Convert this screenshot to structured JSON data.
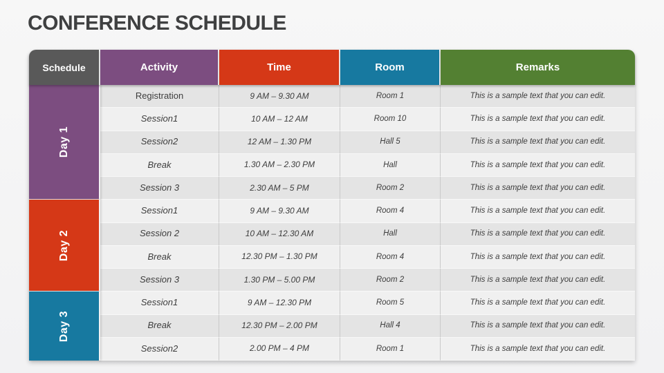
{
  "title": "CONFERENCE SCHEDULE",
  "table": {
    "headers": [
      "Schedule",
      "Activity",
      "Time",
      "Room",
      "Remarks"
    ],
    "days": [
      {
        "label": "Day 1",
        "rows": [
          {
            "activity": "Registration",
            "time": "9 AM – 9.30 AM",
            "room": "Room 1",
            "remark": "This is a sample text that you can edit."
          },
          {
            "activity": "Session1",
            "time": "10 AM – 12 AM",
            "room": "Room 10",
            "remark": "This is a sample text that you can edit."
          },
          {
            "activity": "Session2",
            "time": "12 AM – 1.30 PM",
            "room": "Hall 5",
            "remark": "This is a sample text that you can edit."
          },
          {
            "activity": "Break",
            "time": "1.30 AM – 2.30 PM",
            "room": "Hall",
            "remark": "This is a sample text that you can edit."
          },
          {
            "activity": "Session 3",
            "time": "2.30 AM – 5 PM",
            "room": "Room 2",
            "remark": "This is a sample text that you can edit."
          }
        ]
      },
      {
        "label": "Day 2",
        "rows": [
          {
            "activity": "Session1",
            "time": "9 AM – 9.30 AM",
            "room": "Room 4",
            "remark": "This is a sample text that you can edit."
          },
          {
            "activity": "Session 2",
            "time": "10 AM – 12.30 AM",
            "room": "Hall",
            "remark": "This is a sample text that you can edit."
          },
          {
            "activity": "Break",
            "time": "12.30 PM – 1.30 PM",
            "room": "Room 4",
            "remark": "This is a sample text that you can edit."
          },
          {
            "activity": "Session 3",
            "time": "1.30 PM – 5.00 PM",
            "room": "Room 2",
            "remark": "This is a sample text that you can edit."
          }
        ]
      },
      {
        "label": "Day 3",
        "rows": [
          {
            "activity": "Session1",
            "time": "9 AM – 12.30 PM",
            "room": "Room 5",
            "remark": "This is a sample text that you can edit."
          },
          {
            "activity": "Break",
            "time": "12.30 PM – 2.00 PM",
            "room": "Hall 4",
            "remark": "This is a sample text that you can edit."
          },
          {
            "activity": "Session2",
            "time": "2.00 PM – 4 PM",
            "room": "Room 1",
            "remark": "This is a sample text that you can edit."
          }
        ]
      }
    ]
  },
  "colors": {
    "title_text": "#3F4041",
    "header_schedule": "#595959",
    "header_activity": "#7C4D80",
    "header_time": "#D53817",
    "header_room": "#1779A0",
    "header_remarks": "#538032",
    "day1": "#7C4D80",
    "day2": "#D53817",
    "day3": "#1779A0",
    "row_dark": "#E4E4E4",
    "row_light": "#F0F0F0"
  }
}
